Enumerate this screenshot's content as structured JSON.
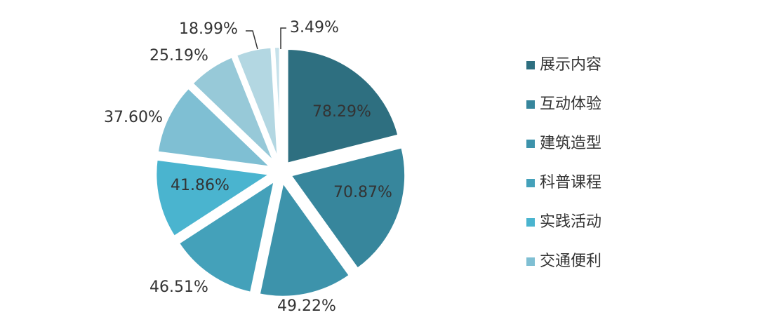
{
  "chart_data": {
    "type": "pie",
    "categories": [
      "展示内容",
      "互动体验",
      "建筑造型",
      "科普课程",
      "实践活动",
      "交通便利",
      null,
      null,
      null
    ],
    "values": [
      78.29,
      70.87,
      49.22,
      46.51,
      41.86,
      37.6,
      25.19,
      18.99,
      3.49
    ],
    "value_labels": [
      "78.29%",
      "70.87%",
      "49.22%",
      "46.51%",
      "41.86%",
      "37.60%",
      "25.19%",
      "18.99%",
      "3.49%"
    ],
    "colors": [
      "#2e6f80",
      "#37869c",
      "#3d93ab",
      "#44a1ba",
      "#4ab4cf",
      "#7fbfd3",
      "#97c9d8",
      "#b3d7e2",
      "#c6e1ea"
    ],
    "legend": "right"
  }
}
